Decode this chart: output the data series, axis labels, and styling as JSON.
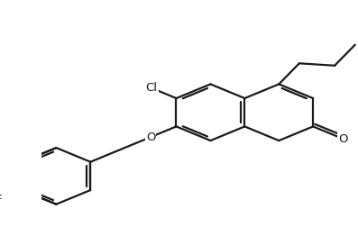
{
  "background_color": "#ffffff",
  "line_color": "#1a1a1a",
  "line_width": 1.6,
  "figsize": [
    3.97,
    2.52
  ],
  "dpi": 100,
  "label_fontsize": 9.5,
  "BL": 0.125,
  "bcx": 0.535,
  "bcy": 0.505,
  "propyl_angles": [
    55,
    -5,
    55
  ],
  "Cl_label": "Cl",
  "O_ether_label": "O",
  "O_carbonyl_label": "O",
  "F_label": "F"
}
